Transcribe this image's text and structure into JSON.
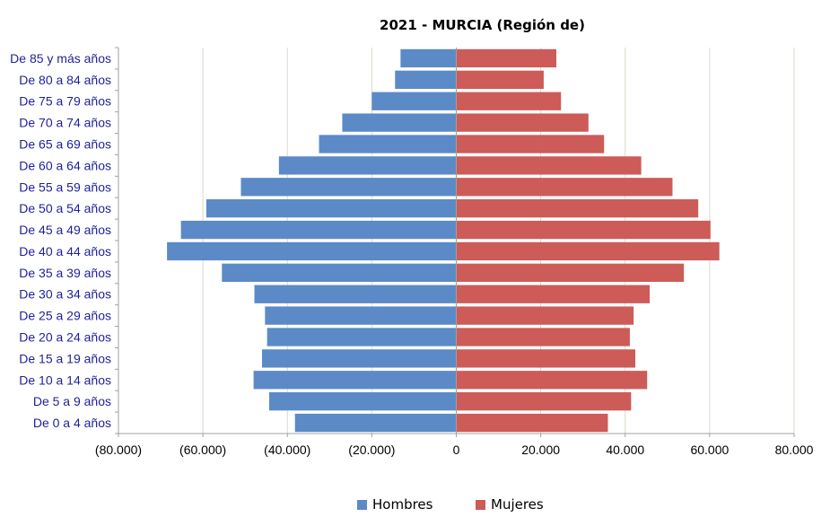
{
  "chart_data": {
    "type": "bar",
    "orientation": "horizontal",
    "title": "2021 - MURCIA (Región de)",
    "categories": [
      "De 85 y más años",
      "De 80 a 84 años",
      "De 75 a 79 años",
      "De 70 a 74 años",
      "De 65 a 69 años",
      "De 60 a 64 años",
      "De 55 a 59 años",
      "De 50 a 54 años",
      "De 45 a 49 años",
      "De 40 a 44 años",
      "De 35 a 39 años",
      "De 30 a 34 años",
      "De 25 a 29 años",
      "De 20 a 24 años",
      "De 15 a 19 años",
      "De 10 a 14 años",
      "De 5 a 9 años",
      "De 0 a 4 años"
    ],
    "series": [
      {
        "name": "Hombres",
        "color": "#5b8ac6",
        "values": [
          -13200,
          -14500,
          -20000,
          -27000,
          -32500,
          -42000,
          -51000,
          -59200,
          -65200,
          -68500,
          -55500,
          -47800,
          -45300,
          -44800,
          -46000,
          -48000,
          -44300,
          -38200
        ]
      },
      {
        "name": "Mujeres",
        "color": "#cd5b58",
        "values": [
          23700,
          20700,
          24800,
          31300,
          35000,
          43800,
          51200,
          57300,
          60200,
          62300,
          53900,
          45800,
          42000,
          41100,
          42400,
          45200,
          41400,
          35900
        ]
      }
    ],
    "xlim": [
      -80000,
      80000
    ],
    "x_ticks": [
      -80000,
      -60000,
      -40000,
      -20000,
      0,
      20000,
      40000,
      60000,
      80000
    ],
    "x_tick_labels": [
      "(80.000)",
      "(60.000)",
      "(40.000)",
      "(20.000)",
      "0",
      "20.000",
      "40.000",
      "60.000",
      "80.000"
    ],
    "grid": "vertical",
    "legend": "bottom"
  }
}
